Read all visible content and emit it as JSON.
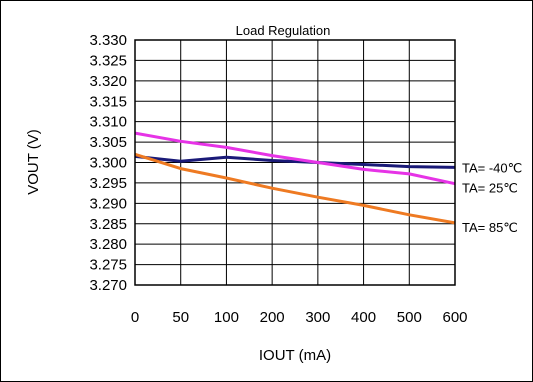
{
  "chart_data": {
    "type": "line",
    "title": "Load Regulation",
    "xlabel": "IOUT (mA)",
    "ylabel": "VOUT (V)",
    "categories": [
      "0",
      "50",
      "100",
      "200",
      "300",
      "400",
      "500",
      "600"
    ],
    "yticks": [
      "3.330",
      "3.325",
      "3.320",
      "3.315",
      "3.310",
      "3.305",
      "3.300",
      "3.295",
      "3.290",
      "3.285",
      "3.280",
      "3.275",
      "3.270"
    ],
    "ylim": [
      3.27,
      3.33
    ],
    "grid": true,
    "legend": "right-of-lines",
    "series": [
      {
        "name": "TA= -40℃",
        "color": "#1a1a78",
        "values": [
          3.3015,
          3.3003,
          3.3013,
          3.3005,
          3.3,
          3.2995,
          3.299,
          3.2988
        ]
      },
      {
        "name": "TA= 25℃",
        "color": "#e633e6",
        "values": [
          3.3072,
          3.3052,
          3.3037,
          3.3017,
          3.3,
          3.2983,
          3.2972,
          3.2948
        ]
      },
      {
        "name": "TA= 85℃",
        "color": "#ee7a22",
        "values": [
          3.302,
          3.2985,
          3.2962,
          3.2937,
          3.2915,
          3.2895,
          3.2872,
          3.2852
        ]
      }
    ]
  }
}
